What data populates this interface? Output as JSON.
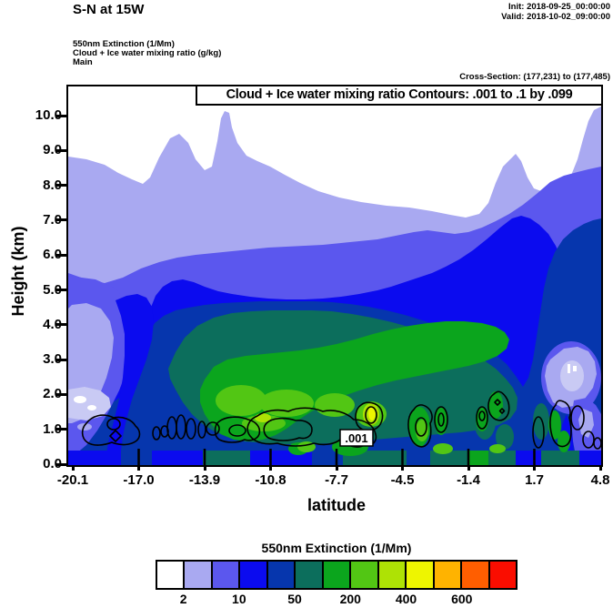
{
  "header": {
    "title": "S-N at 15W",
    "init": "Init: 2018-09-25_00:00:00",
    "valid": "Valid: 2018-10-02_09:00:00",
    "layers": [
      "550nm Extinction  (1/Mm)",
      "Cloud + Ice water mixing ratio  (g/kg)",
      "Main"
    ],
    "cross_section": "Cross-Section: (177,231) to (177,485)"
  },
  "plot": {
    "banner": "Cloud + Ice water mixing ratio Contours: .001 to .1 by .099",
    "xlabel": "latitude",
    "ylabel": "Height (km)",
    "yticks": [
      "10.0",
      "9.0",
      "8.0",
      "7.0",
      "6.0",
      "5.0",
      "4.0",
      "3.0",
      "2.0",
      "1.0",
      "0.0"
    ],
    "xticks": [
      "-20.1",
      "-17.0",
      "-13.9",
      "-10.8",
      "-7.7",
      "-4.5",
      "-1.4",
      "1.7",
      "4.8"
    ],
    "contour_label": ".001"
  },
  "colorbar": {
    "title": "550nm Extinction  (1/Mm)",
    "cells": [
      "#ffffff",
      "#a9a9f1",
      "#5b57ee",
      "#0b0bef",
      "#0636ad",
      "#0c6e5c",
      "#0ba51d",
      "#52c614",
      "#aee205",
      "#eef500",
      "#ffb300",
      "#ff5e00",
      "#fa0d00"
    ],
    "labels": [
      "2",
      "10",
      "50",
      "200",
      "400",
      "600"
    ]
  },
  "chart_data": {
    "type": "heatmap",
    "subtype": "filled-contour-vertical-cross-section",
    "title": "S-N at 15W",
    "xlabel": "latitude",
    "ylabel": "Height (km)",
    "x_ticks": [
      -20.1,
      -17.0,
      -13.9,
      -10.8,
      -7.7,
      -4.5,
      -1.4,
      1.7,
      4.8
    ],
    "xlim": [
      -20.1,
      4.8
    ],
    "y_ticks": [
      0.0,
      1.0,
      2.0,
      3.0,
      4.0,
      5.0,
      6.0,
      7.0,
      8.0,
      9.0,
      10.0
    ],
    "ylim": [
      0.0,
      10.8
    ],
    "fill_variable": "550nm Extinction (1/Mm)",
    "n_fill_bins": 13,
    "fill_palette": [
      "#ffffff",
      "#a9a9f1",
      "#5b57ee",
      "#0b0bef",
      "#0636ad",
      "#0c6e5c",
      "#0ba51d",
      "#52c614",
      "#aee205",
      "#eef500",
      "#ffb300",
      "#ff5e00",
      "#fa0d00"
    ],
    "colorbar_labeled_levels": [
      2,
      10,
      50,
      200,
      400,
      600
    ],
    "overlay_variable": "Cloud + Ice water mixing ratio (g/kg)",
    "overlay_contour_start": 0.001,
    "overlay_contour_end": 0.1,
    "overlay_contour_interval": 0.099,
    "overlay_labeled_value": 0.001,
    "init_time": "2018-09-25_00:00:00",
    "valid_time": "2018-10-02_09:00:00",
    "cross_section_points": "(177,231) to (177,485)",
    "legend_position": "bottom",
    "grid": false,
    "features": [
      "Clean air (<2 1/Mm, white) above ~7-8 km across most latitudes, lowering to ~5 km near latitude -20",
      "Moderate extinction (10-50 1/Mm, blue shades) layer between ~2 and 5 km from latitude -17 to 4.8",
      "High extinction (200-600 1/Mm, green to yellow) concentrated below ~3 km between latitudes -16 and 0, peaking near 1 km around latitude -8",
      "Cloud + ice water 0.001 g/kg contour loops hug the 0.5-2 km layer along most of the section"
    ]
  }
}
